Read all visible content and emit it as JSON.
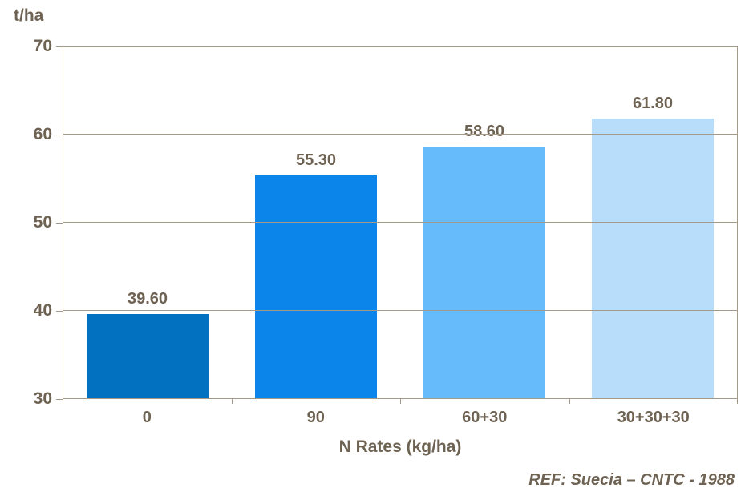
{
  "chart_data": {
    "type": "bar",
    "title": "",
    "y_unit_label": "t/ha",
    "xlabel": "N Rates (kg/ha)",
    "ylabel": "t/ha",
    "categories": [
      "0",
      "90",
      "60+30",
      "30+30+30"
    ],
    "values": [
      39.6,
      55.3,
      58.6,
      61.8
    ],
    "value_labels": [
      "39.60",
      "55.30",
      "58.60",
      "61.80"
    ],
    "bar_colors": [
      "#0271c0",
      "#0b85e9",
      "#66bbfa",
      "#b8ddfb"
    ],
    "ylim": [
      30,
      70
    ],
    "yticks": [
      30,
      40,
      50,
      60,
      70
    ],
    "grid": true,
    "legend": false,
    "footnote": "REF: Suecia – CNTC - 1988"
  },
  "colors": {
    "text": "#6e6252",
    "axis": "#a49a89",
    "background": "#ffffff"
  }
}
